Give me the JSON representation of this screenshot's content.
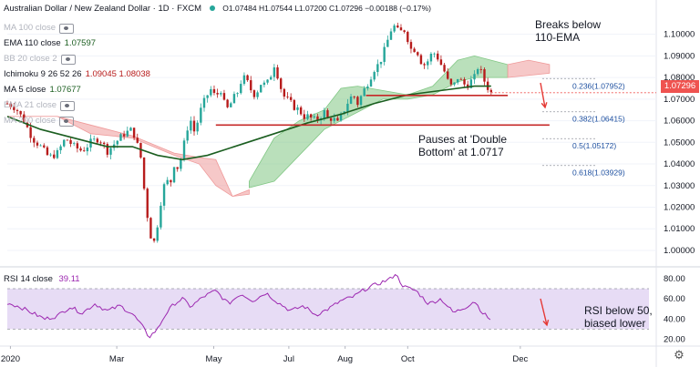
{
  "header": {
    "symbol": "Australian Dollar / New Zealand Dollar · 1D · FXCM",
    "ohlc": "O1.07484  H1.07544  L1.07200  C1.07296  −0.00188 (−0.17%)"
  },
  "indicators": [
    {
      "name": "MA 100 close",
      "value": "",
      "muted": true
    },
    {
      "name": "EMA 110 close",
      "value": "1.07597",
      "muted": false
    },
    {
      "name": "BB 20 close 2",
      "value": "",
      "muted": true
    },
    {
      "name": "Ichimoku 9 26 52 26",
      "value": "1.09045  1.08038",
      "muted": false
    },
    {
      "name": "MA 5 close",
      "value": "1.07677",
      "muted": false
    },
    {
      "name": "EMA 21 close",
      "value": "",
      "muted": true
    },
    {
      "name": "MA 200 close",
      "value": "",
      "muted": true
    }
  ],
  "rsi_legend": {
    "name": "RSI 14 close",
    "value": "39.11"
  },
  "annotations": {
    "breaks": "Breaks below\n110-EMA",
    "pauses": "Pauses at 'Double\nBottom' at 1.0717",
    "rsi": "RSI below 50,\nbiased lower"
  },
  "current_price": "1.07296",
  "colors": {
    "up": "#26a69a",
    "down": "#b71c1c",
    "ema": "#1b5e20",
    "cloud_bull": "#81c784",
    "cloud_bear": "#ef9a9a",
    "level": "#c62828",
    "rsi": "#9c27b0",
    "rsi_band": "#e7dcf5",
    "arrow": "#e53935"
  },
  "chart_data": [
    {
      "type": "candlestick",
      "title": "Australian Dollar / New Zealand Dollar · 1D · FXCM",
      "x_ticks": [
        "2020",
        "Mar",
        "May",
        "Jul",
        "Aug",
        "Oct",
        "Dec"
      ],
      "y_ticks": [
        "1.10000",
        "1.09000",
        "1.08000",
        "1.07000",
        "1.06000",
        "1.05000",
        "1.04000",
        "1.03000",
        "1.02000",
        "1.01000",
        "1.00000"
      ],
      "ylim": [
        0.9945,
        1.1125
      ],
      "close_path": [
        [
          0,
          1.068
        ],
        [
          10,
          1.066
        ],
        [
          20,
          1.06
        ],
        [
          30,
          1.052
        ],
        [
          40,
          1.048
        ],
        [
          50,
          1.043
        ],
        [
          60,
          1.045
        ],
        [
          70,
          1.052
        ],
        [
          80,
          1.048
        ],
        [
          90,
          1.046
        ],
        [
          100,
          1.05
        ],
        [
          110,
          1.052
        ],
        [
          120,
          1.046
        ],
        [
          130,
          1.05
        ],
        [
          140,
          1.054
        ],
        [
          150,
          1.056
        ],
        [
          155,
          1.05
        ],
        [
          160,
          1.043
        ],
        [
          165,
          1.025
        ],
        [
          170,
          1.01
        ],
        [
          175,
          1.002
        ],
        [
          180,
          1.012
        ],
        [
          185,
          1.025
        ],
        [
          190,
          1.033
        ],
        [
          195,
          1.03
        ],
        [
          200,
          1.04
        ],
        [
          205,
          1.038
        ],
        [
          210,
          1.045
        ],
        [
          215,
          1.056
        ],
        [
          220,
          1.06
        ],
        [
          225,
          1.054
        ],
        [
          230,
          1.063
        ],
        [
          235,
          1.068
        ],
        [
          240,
          1.072
        ],
        [
          245,
          1.075
        ],
        [
          250,
          1.07
        ],
        [
          255,
          1.076
        ],
        [
          260,
          1.068
        ],
        [
          265,
          1.065
        ],
        [
          270,
          1.07
        ],
        [
          275,
          1.072
        ],
        [
          280,
          1.078
        ],
        [
          285,
          1.08
        ],
        [
          290,
          1.076
        ],
        [
          295,
          1.072
        ],
        [
          300,
          1.074
        ],
        [
          305,
          1.078
        ],
        [
          310,
          1.076
        ],
        [
          315,
          1.08
        ],
        [
          320,
          1.086
        ],
        [
          325,
          1.08
        ],
        [
          330,
          1.072
        ],
        [
          335,
          1.07
        ],
        [
          340,
          1.068
        ],
        [
          345,
          1.066
        ],
        [
          350,
          1.065
        ],
        [
          355,
          1.062
        ],
        [
          360,
          1.062
        ],
        [
          365,
          1.061
        ],
        [
          370,
          1.06
        ],
        [
          375,
          1.062
        ],
        [
          380,
          1.064
        ],
        [
          385,
          1.06
        ],
        [
          390,
          1.062
        ],
        [
          395,
          1.058
        ],
        [
          400,
          1.062
        ],
        [
          405,
          1.066
        ],
        [
          410,
          1.07
        ],
        [
          415,
          1.072
        ],
        [
          420,
          1.068
        ],
        [
          425,
          1.072
        ],
        [
          430,
          1.076
        ],
        [
          435,
          1.08
        ],
        [
          440,
          1.084
        ],
        [
          445,
          1.086
        ],
        [
          450,
          1.09
        ],
        [
          455,
          1.096
        ],
        [
          460,
          1.102
        ],
        [
          465,
          1.104
        ],
        [
          470,
          1.1
        ],
        [
          475,
          1.103
        ],
        [
          480,
          1.098
        ],
        [
          485,
          1.092
        ],
        [
          490,
          1.094
        ],
        [
          495,
          1.088
        ],
        [
          500,
          1.086
        ],
        [
          505,
          1.088
        ],
        [
          510,
          1.092
        ],
        [
          515,
          1.09
        ],
        [
          520,
          1.086
        ],
        [
          525,
          1.082
        ],
        [
          530,
          1.076
        ],
        [
          535,
          1.076
        ],
        [
          540,
          1.08
        ],
        [
          545,
          1.078
        ],
        [
          550,
          1.076
        ],
        [
          555,
          1.078
        ],
        [
          560,
          1.08
        ],
        [
          565,
          1.086
        ],
        [
          570,
          1.08
        ],
        [
          575,
          1.076
        ],
        [
          580,
          1.0729
        ]
      ],
      "ema_110": [
        [
          0,
          1.062
        ],
        [
          40,
          1.056
        ],
        [
          80,
          1.052
        ],
        [
          120,
          1.048
        ],
        [
          150,
          1.048
        ],
        [
          180,
          1.044
        ],
        [
          210,
          1.042
        ],
        [
          240,
          1.044
        ],
        [
          280,
          1.049
        ],
        [
          320,
          1.054
        ],
        [
          360,
          1.059
        ],
        [
          400,
          1.063
        ],
        [
          440,
          1.068
        ],
        [
          480,
          1.072
        ],
        [
          520,
          1.074
        ],
        [
          560,
          1.076
        ],
        [
          580,
          1.076
        ]
      ],
      "cloud_bear_top": [
        [
          0,
          1.062
        ],
        [
          60,
          1.062
        ],
        [
          100,
          1.058
        ],
        [
          150,
          1.053
        ],
        [
          200,
          1.045
        ],
        [
          230,
          1.043
        ],
        [
          250,
          1.042
        ],
        [
          270,
          1.025
        ],
        [
          290,
          1.028
        ]
      ],
      "cloud_bear_bottom": [
        [
          0,
          1.062
        ],
        [
          60,
          1.062
        ],
        [
          100,
          1.054
        ],
        [
          150,
          1.052
        ],
        [
          200,
          1.044
        ],
        [
          230,
          1.04
        ],
        [
          250,
          1.03
        ],
        [
          270,
          1.025
        ],
        [
          290,
          1.026
        ]
      ],
      "cloud_bull_top": [
        [
          290,
          1.032
        ],
        [
          320,
          1.052
        ],
        [
          350,
          1.06
        ],
        [
          380,
          1.065
        ],
        [
          400,
          1.075
        ],
        [
          420,
          1.076
        ],
        [
          450,
          1.074
        ],
        [
          480,
          1.072
        ],
        [
          510,
          1.076
        ],
        [
          540,
          1.088
        ],
        [
          560,
          1.09
        ],
        [
          580,
          1.088
        ],
        [
          600,
          1.086
        ]
      ],
      "cloud_bull_bottom": [
        [
          290,
          1.029
        ],
        [
          320,
          1.032
        ],
        [
          350,
          1.044
        ],
        [
          380,
          1.056
        ],
        [
          400,
          1.06
        ],
        [
          420,
          1.064
        ],
        [
          450,
          1.07
        ],
        [
          480,
          1.07
        ],
        [
          510,
          1.072
        ],
        [
          540,
          1.078
        ],
        [
          560,
          1.08
        ],
        [
          580,
          1.08
        ],
        [
          600,
          1.08
        ]
      ],
      "cloud_future_bear": [
        [
          600,
          1.086
        ],
        [
          625,
          1.088
        ],
        [
          650,
          1.086
        ]
      ],
      "cloud_future_bear_bottom": [
        [
          600,
          1.08
        ],
        [
          625,
          1.081
        ],
        [
          650,
          1.082
        ]
      ],
      "levels": [
        {
          "price": 1.0717,
          "x_from": 430,
          "x_to": 600,
          "label": "double-bottom"
        },
        {
          "price": 1.058,
          "x_from": 250,
          "x_to": 650,
          "label": "support"
        }
      ],
      "fib_levels": [
        {
          "label": "0.236(1.07952)",
          "price": 1.07952
        },
        {
          "label": "0.382(1.06415)",
          "price": 1.06415
        },
        {
          "label": "0.5(1.05172)",
          "price": 1.05172
        },
        {
          "label": "0.618(1.03929)",
          "price": 1.03929
        }
      ]
    },
    {
      "type": "line",
      "title": "RSI 14 close",
      "y_ticks": [
        "80.00",
        "60.00",
        "40.00",
        "20.00"
      ],
      "ylim": [
        15,
        88
      ],
      "band": [
        30,
        70
      ],
      "values": [
        [
          0,
          56
        ],
        [
          15,
          52
        ],
        [
          30,
          46
        ],
        [
          45,
          40
        ],
        [
          60,
          43
        ],
        [
          75,
          52
        ],
        [
          90,
          46
        ],
        [
          105,
          55
        ],
        [
          120,
          48
        ],
        [
          135,
          53
        ],
        [
          150,
          45
        ],
        [
          160,
          35
        ],
        [
          170,
          22
        ],
        [
          180,
          30
        ],
        [
          190,
          45
        ],
        [
          200,
          55
        ],
        [
          210,
          60
        ],
        [
          220,
          52
        ],
        [
          235,
          62
        ],
        [
          250,
          68
        ],
        [
          265,
          55
        ],
        [
          280,
          65
        ],
        [
          295,
          58
        ],
        [
          310,
          66
        ],
        [
          325,
          56
        ],
        [
          340,
          48
        ],
        [
          355,
          53
        ],
        [
          370,
          44
        ],
        [
          385,
          50
        ],
        [
          400,
          58
        ],
        [
          415,
          62
        ],
        [
          430,
          70
        ],
        [
          445,
          75
        ],
        [
          460,
          80
        ],
        [
          465,
          85
        ],
        [
          475,
          72
        ],
        [
          490,
          68
        ],
        [
          505,
          55
        ],
        [
          520,
          60
        ],
        [
          535,
          46
        ],
        [
          550,
          52
        ],
        [
          560,
          58
        ],
        [
          570,
          46
        ],
        [
          580,
          39
        ]
      ]
    }
  ]
}
